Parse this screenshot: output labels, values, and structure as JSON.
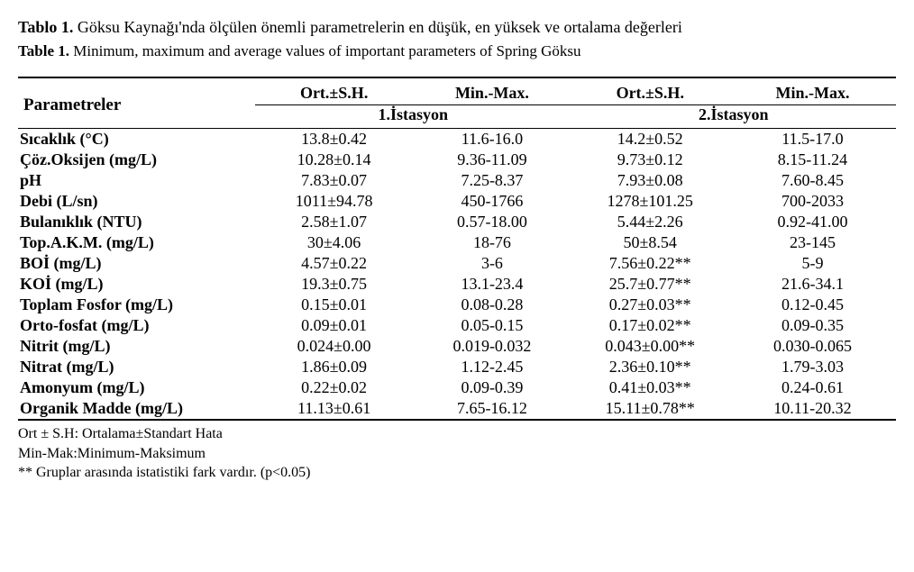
{
  "captions": {
    "tr_label": "Tablo 1.",
    "tr_text": " Göksu Kaynağı'nda ölçülen önemli parametrelerin en düşük, en yüksek ve ortalama değerleri",
    "en_label": "Table 1.",
    "en_text": " Minimum, maximum and average values of important parameters of Spring Göksu"
  },
  "headers": {
    "parametreler": "Parametreler",
    "ort_sh": "Ort.±S.H.",
    "min_max": "Min.-Max.",
    "station1": "1.İstasyon",
    "station2": "2.İstasyon"
  },
  "rows": [
    {
      "p": "Sıcaklık (°C)",
      "a": "13.8±0.42",
      "b": "11.6-16.0",
      "c": "14.2±0.52",
      "d": "11.5-17.0"
    },
    {
      "p": "Çöz.Oksijen (mg/L)",
      "a": "10.28±0.14",
      "b": "9.36-11.09",
      "c": "9.73±0.12",
      "d": "8.15-11.24"
    },
    {
      "p": "pH",
      "a": "7.83±0.07",
      "b": "7.25-8.37",
      "c": "7.93±0.08",
      "d": "7.60-8.45"
    },
    {
      "p": "Debi (L/sn)",
      "a": "1011±94.78",
      "b": "450-1766",
      "c": "1278±101.25",
      "d": "700-2033"
    },
    {
      "p": "Bulanıklık (NTU)",
      "a": "2.58±1.07",
      "b": "0.57-18.00",
      "c": "5.44±2.26",
      "d": "0.92-41.00"
    },
    {
      "p": "Top.A.K.M. (mg/L)",
      "a": "30±4.06",
      "b": "18-76",
      "c": "50±8.54",
      "d": "23-145"
    },
    {
      "p": "BOİ (mg/L)",
      "a": "4.57±0.22",
      "b": "3-6",
      "c": "7.56±0.22**",
      "d": "5-9"
    },
    {
      "p": "KOİ (mg/L)",
      "a": "19.3±0.75",
      "b": "13.1-23.4",
      "c": "25.7±0.77**",
      "d": "21.6-34.1"
    },
    {
      "p": "Toplam Fosfor (mg/L)",
      "a": "0.15±0.01",
      "b": "0.08-0.28",
      "c": "0.27±0.03**",
      "d": "0.12-0.45"
    },
    {
      "p": "Orto-fosfat (mg/L)",
      "a": "0.09±0.01",
      "b": "0.05-0.15",
      "c": "0.17±0.02**",
      "d": "0.09-0.35"
    },
    {
      "p": "Nitrit (mg/L)",
      "a": "0.024±0.00",
      "b": "0.019-0.032",
      "c": "0.043±0.00**",
      "d": "0.030-0.065"
    },
    {
      "p": "Nitrat (mg/L)",
      "a": "1.86±0.09",
      "b": "1.12-2.45",
      "c": "2.36±0.10**",
      "d": "1.79-3.03"
    },
    {
      "p": "Amonyum (mg/L)",
      "a": "0.22±0.02",
      "b": "0.09-0.39",
      "c": "0.41±0.03**",
      "d": "0.24-0.61"
    },
    {
      "p": "Organik Madde (mg/L)",
      "a": "11.13±0.61",
      "b": "7.65-16.12",
      "c": "15.11±0.78**",
      "d": "10.11-20.32"
    }
  ],
  "footnotes": {
    "f1": "Ort ± S.H: Ortalama±Standart Hata",
    "f2": "Min-Mak:Minimum-Maksimum",
    "f3": "** Gruplar arasında istatistiki fark vardır. (p<0.05)"
  },
  "style": {
    "col_widths_percent": [
      27,
      18,
      18,
      18,
      19
    ]
  }
}
